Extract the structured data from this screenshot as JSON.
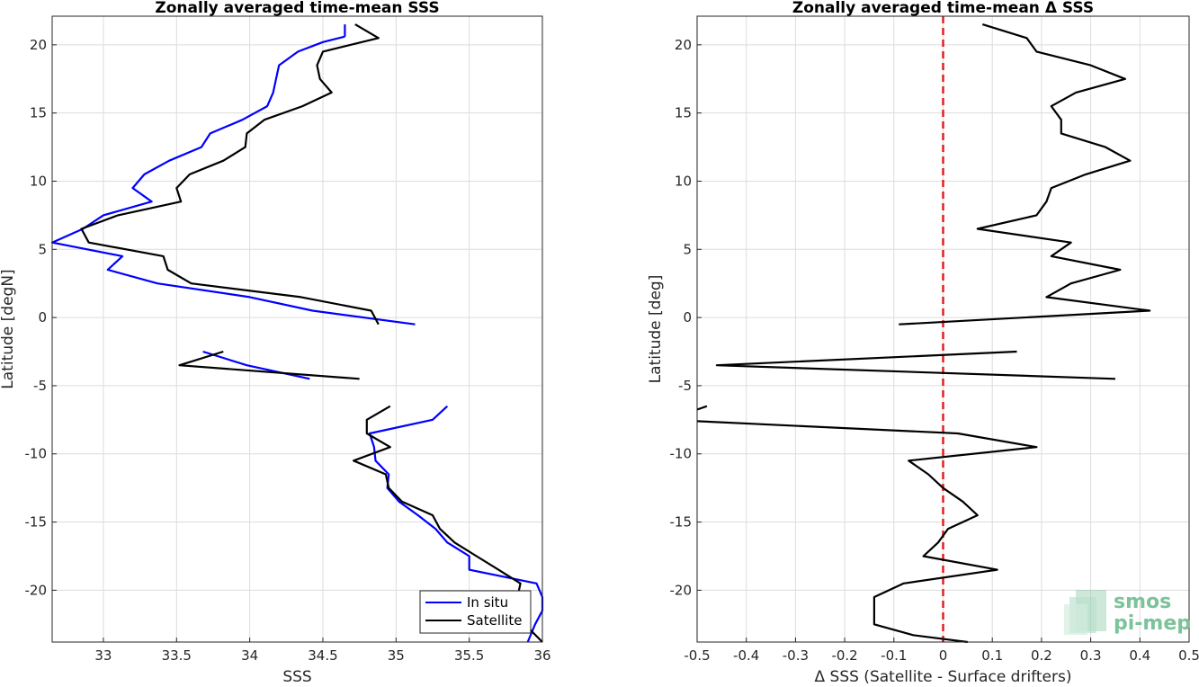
{
  "charts": [
    {
      "type": "line",
      "title": "Zonally averaged time-mean SSS",
      "xlabel": "SSS",
      "ylabel": "Latitude [degN]",
      "xlim": [
        32.65,
        36.0
      ],
      "ylim": [
        -23.8,
        22.1
      ],
      "xticks": [
        33,
        33.5,
        34,
        34.5,
        35,
        35.5,
        36
      ],
      "xtick_labels": [
        "33",
        "33.5",
        "34",
        "34.5",
        "35",
        "35.5",
        "36"
      ],
      "yticks": [
        20,
        15,
        10,
        5,
        0,
        -5,
        -10,
        -15,
        -20
      ],
      "ytick_labels": [
        "20",
        "15",
        "10",
        "5",
        "0",
        "-5",
        "-10",
        "-15",
        "-20"
      ],
      "grid": true,
      "legend": {
        "position": "bottom-right",
        "entries": [
          {
            "label": "In situ",
            "color": "#0000ff"
          },
          {
            "label": "Satellite",
            "color": "#000000"
          }
        ]
      },
      "series": [
        {
          "name": "In situ",
          "color": "#0000ff",
          "segments": [
            [
              [
                34.65,
                20.6
              ],
              [
                34.65,
                21.5
              ]
            ],
            [
              [
                34.65,
                20.6
              ],
              [
                34.5,
                20.2
              ],
              [
                34.33,
                19.5
              ],
              [
                34.2,
                18.5
              ],
              [
                34.18,
                17.5
              ],
              [
                34.16,
                16.5
              ],
              [
                34.12,
                15.5
              ],
              [
                33.95,
                14.5
              ],
              [
                33.73,
                13.5
              ],
              [
                33.67,
                12.5
              ],
              [
                33.45,
                11.5
              ],
              [
                33.28,
                10.5
              ],
              [
                33.2,
                9.5
              ],
              [
                33.33,
                8.5
              ],
              [
                33.0,
                7.5
              ],
              [
                32.86,
                6.5
              ],
              [
                32.65,
                5.5
              ],
              [
                33.13,
                4.5
              ],
              [
                33.03,
                3.5
              ],
              [
                33.37,
                2.5
              ],
              [
                34.0,
                1.5
              ],
              [
                34.43,
                0.5
              ],
              [
                35.13,
                -0.5
              ]
            ],
            [
              [
                33.68,
                -2.5
              ],
              [
                33.98,
                -3.5
              ],
              [
                34.41,
                -4.5
              ]
            ],
            [
              [
                35.35,
                -6.5
              ],
              [
                35.25,
                -7.5
              ],
              [
                34.82,
                -8.5
              ],
              [
                34.85,
                -9.5
              ],
              [
                34.86,
                -10.5
              ],
              [
                34.95,
                -11.5
              ],
              [
                34.94,
                -12.5
              ],
              [
                35.02,
                -13.5
              ],
              [
                35.15,
                -14.5
              ],
              [
                35.27,
                -15.5
              ],
              [
                35.35,
                -16.5
              ],
              [
                35.5,
                -17.5
              ],
              [
                35.5,
                -18.5
              ],
              [
                35.96,
                -19.5
              ],
              [
                36.0,
                -20.5
              ],
              [
                36.0,
                -21.5
              ],
              [
                35.95,
                -22.5
              ],
              [
                35.9,
                -23.8
              ]
            ]
          ]
        },
        {
          "name": "Satellite",
          "color": "#000000",
          "segments": [
            [
              [
                34.72,
                21.5
              ],
              [
                34.88,
                20.5
              ],
              [
                34.5,
                19.5
              ],
              [
                34.46,
                18.5
              ],
              [
                34.48,
                17.5
              ],
              [
                34.56,
                16.5
              ],
              [
                34.36,
                15.5
              ],
              [
                34.1,
                14.5
              ],
              [
                33.98,
                13.5
              ],
              [
                33.97,
                12.5
              ],
              [
                33.82,
                11.5
              ],
              [
                33.59,
                10.5
              ],
              [
                33.5,
                9.5
              ],
              [
                33.53,
                8.5
              ],
              [
                33.1,
                7.5
              ],
              [
                32.85,
                6.5
              ],
              [
                32.9,
                5.5
              ],
              [
                33.41,
                4.5
              ],
              [
                33.44,
                3.5
              ],
              [
                33.6,
                2.5
              ],
              [
                34.35,
                1.5
              ],
              [
                34.83,
                0.5
              ],
              [
                34.88,
                -0.5
              ]
            ],
            [
              [
                33.82,
                -2.5
              ],
              [
                33.52,
                -3.5
              ],
              [
                34.75,
                -4.5
              ]
            ],
            [
              [
                34.96,
                -6.5
              ],
              [
                34.8,
                -7.5
              ],
              [
                34.8,
                -8.5
              ],
              [
                34.96,
                -9.5
              ],
              [
                34.71,
                -10.5
              ],
              [
                34.93,
                -11.5
              ],
              [
                34.95,
                -12.5
              ],
              [
                35.04,
                -13.5
              ],
              [
                35.25,
                -14.5
              ],
              [
                35.3,
                -15.5
              ],
              [
                35.4,
                -16.5
              ],
              [
                35.55,
                -17.5
              ],
              [
                35.7,
                -18.5
              ],
              [
                35.85,
                -19.5
              ],
              [
                35.83,
                -20.5
              ],
              [
                35.83,
                -21.5
              ],
              [
                35.88,
                -22.5
              ],
              [
                36.0,
                -23.8
              ]
            ]
          ]
        }
      ]
    },
    {
      "type": "line",
      "title": "Zonally averaged time-mean Δ SSS",
      "xlabel": "Δ SSS (Satellite - Surface drifters)",
      "ylabel": "Latitude [deg]",
      "xlim": [
        -0.5,
        0.5
      ],
      "ylim": [
        -23.8,
        22.1
      ],
      "xticks": [
        -0.5,
        -0.4,
        -0.3,
        -0.2,
        -0.1,
        0,
        0.1,
        0.2,
        0.3,
        0.4,
        0.5
      ],
      "xtick_labels": [
        "-0.5",
        "-0.4",
        "-0.3",
        "-0.2",
        "-0.1",
        "0",
        "0.1",
        "0.2",
        "0.3",
        "0.4",
        "0.5"
      ],
      "yticks": [
        20,
        15,
        10,
        5,
        0,
        -5,
        -10,
        -15,
        -20
      ],
      "ytick_labels": [
        "20",
        "15",
        "10",
        "5",
        "0",
        "-5",
        "-10",
        "-15",
        "-20"
      ],
      "grid": true,
      "reference_line": {
        "x": 0,
        "color": "#e02020",
        "style": "dashed"
      },
      "series": [
        {
          "name": "Δ SSS",
          "color": "#000000",
          "segments": [
            [
              [
                0.08,
                21.5
              ],
              [
                0.17,
                20.5
              ],
              [
                0.19,
                19.5
              ],
              [
                0.3,
                18.5
              ],
              [
                0.37,
                17.5
              ],
              [
                0.27,
                16.5
              ],
              [
                0.22,
                15.5
              ],
              [
                0.24,
                14.5
              ],
              [
                0.24,
                13.5
              ],
              [
                0.33,
                12.5
              ],
              [
                0.38,
                11.5
              ],
              [
                0.29,
                10.5
              ],
              [
                0.22,
                9.5
              ],
              [
                0.21,
                8.5
              ],
              [
                0.19,
                7.5
              ],
              [
                0.07,
                6.5
              ],
              [
                0.26,
                5.5
              ],
              [
                0.22,
                4.5
              ],
              [
                0.36,
                3.5
              ],
              [
                0.26,
                2.5
              ],
              [
                0.21,
                1.5
              ],
              [
                0.42,
                0.5
              ],
              [
                -0.09,
                -0.5
              ]
            ],
            [
              [
                0.15,
                -2.5
              ],
              [
                -0.46,
                -3.5
              ],
              [
                0.35,
                -4.5
              ]
            ],
            [
              [
                -0.48,
                -6.5
              ],
              [
                -0.5,
                -6.75
              ]
            ],
            [
              [
                -0.5,
                -7.6
              ],
              [
                0.03,
                -8.5
              ],
              [
                0.19,
                -9.5
              ],
              [
                -0.07,
                -10.5
              ],
              [
                -0.03,
                -11.5
              ],
              [
                0.0,
                -12.5
              ],
              [
                0.04,
                -13.5
              ],
              [
                0.07,
                -14.5
              ],
              [
                0.01,
                -15.5
              ],
              [
                -0.01,
                -16.5
              ],
              [
                -0.04,
                -17.5
              ],
              [
                0.11,
                -18.5
              ],
              [
                -0.08,
                -19.5
              ],
              [
                -0.14,
                -20.5
              ],
              [
                -0.14,
                -21.5
              ],
              [
                -0.14,
                -22.5
              ],
              [
                -0.06,
                -23.3
              ],
              [
                0.05,
                -23.8
              ]
            ]
          ]
        }
      ]
    }
  ],
  "logo": {
    "line1": "smos",
    "line2": "pi-mep",
    "color": "#7cc29b"
  }
}
